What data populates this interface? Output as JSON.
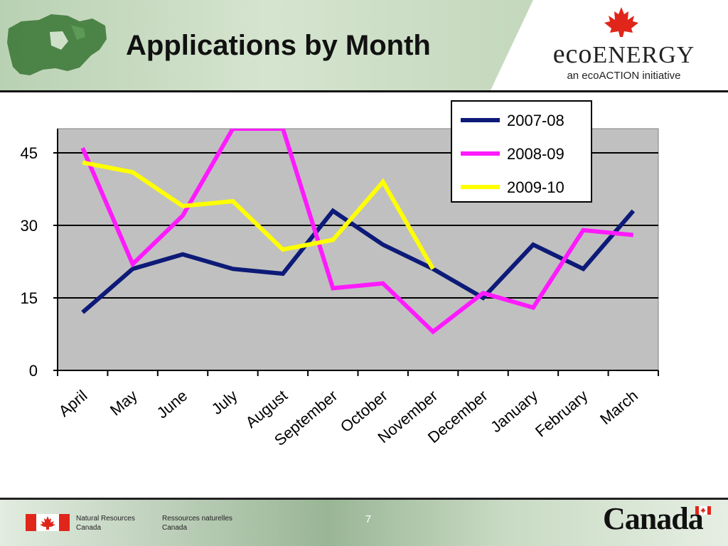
{
  "header": {
    "title": "Applications by Month",
    "brand_name": "ENERGY",
    "brand_prefix": "eco",
    "brand_tagline": "an ecoACTION initiative"
  },
  "footer": {
    "department_en_line1": "Natural Resources",
    "department_en_line2": "Canada",
    "department_fr_line1": "Ressources naturelles",
    "department_fr_line2": "Canada",
    "page_number": "7",
    "wordmark": "Canada"
  },
  "colors": {
    "plot_bg": "#c0c0c0",
    "series_2007": "#0d1a78",
    "series_2008": "#ff1aff",
    "series_2009": "#ffff00",
    "header_green": "#a9c4a4",
    "footer_green": "#9ab596",
    "leaf_red": "#e0261b"
  },
  "chart_data": {
    "type": "line",
    "title": "",
    "xlabel": "",
    "ylabel": "",
    "ylim": [
      0,
      50
    ],
    "yticks": [
      0,
      15,
      30,
      45
    ],
    "grid": true,
    "legend_position": "top-right",
    "categories": [
      "April",
      "May",
      "June",
      "July",
      "August",
      "September",
      "October",
      "November",
      "December",
      "January",
      "February",
      "March"
    ],
    "series": [
      {
        "name": "2007-08",
        "color": "#0d1a78",
        "values": [
          12,
          21,
          24,
          21,
          20,
          33,
          26,
          21,
          15,
          26,
          21,
          33
        ]
      },
      {
        "name": "2008-09",
        "color": "#ff1aff",
        "values": [
          46,
          22,
          32,
          50,
          50,
          17,
          18,
          8,
          16,
          13,
          29,
          28
        ]
      },
      {
        "name": "2009-10",
        "color": "#ffff00",
        "values": [
          43,
          41,
          34,
          35,
          25,
          27,
          39,
          21,
          null,
          null,
          null,
          null
        ]
      }
    ]
  }
}
